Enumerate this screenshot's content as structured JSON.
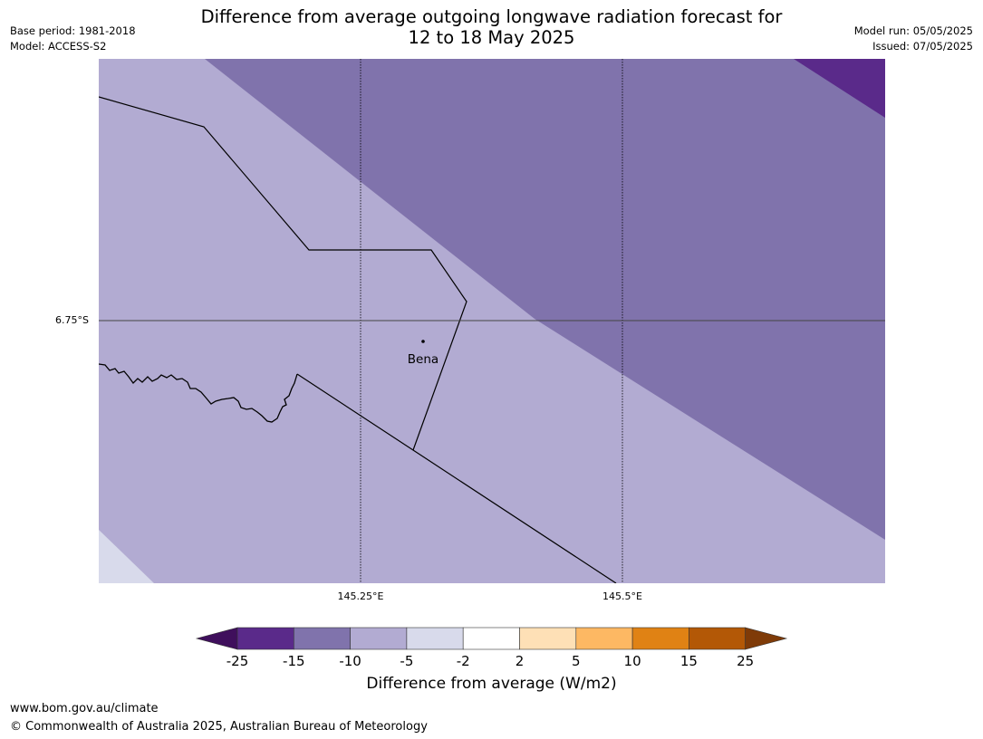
{
  "title_line1": "Difference from average outgoing longwave radiation forecast for",
  "title_line2": "12 to 18 May 2025",
  "meta_left": {
    "base_period": "Base period: 1981-2018",
    "model": "Model: ACCESS-S2"
  },
  "meta_right": {
    "model_run": "Model run: 05/05/2025",
    "issued": "Issued: 07/05/2025"
  },
  "axes": {
    "lat_label": "6.75°S",
    "lon_labels": [
      "145.25°E",
      "145.5°E"
    ]
  },
  "place": {
    "name": "Bena"
  },
  "colorbar": {
    "label": "Difference from average (W/m2)",
    "ticks": [
      "-25",
      "-15",
      "-10",
      "-5",
      "-2",
      "2",
      "5",
      "10",
      "15",
      "25"
    ],
    "colors": [
      "#3f0f5c",
      "#5a2a8a",
      "#8073ac",
      "#b2abd2",
      "#d8daeb",
      "#ffffff",
      "#fee0b6",
      "#fdb863",
      "#e08214",
      "#b35806",
      "#7f3b08"
    ]
  },
  "footer": {
    "url": "www.bom.gov.au/climate",
    "copyright": "© Commonwealth of Australia 2025, Australian Bureau of Meteorology"
  }
}
